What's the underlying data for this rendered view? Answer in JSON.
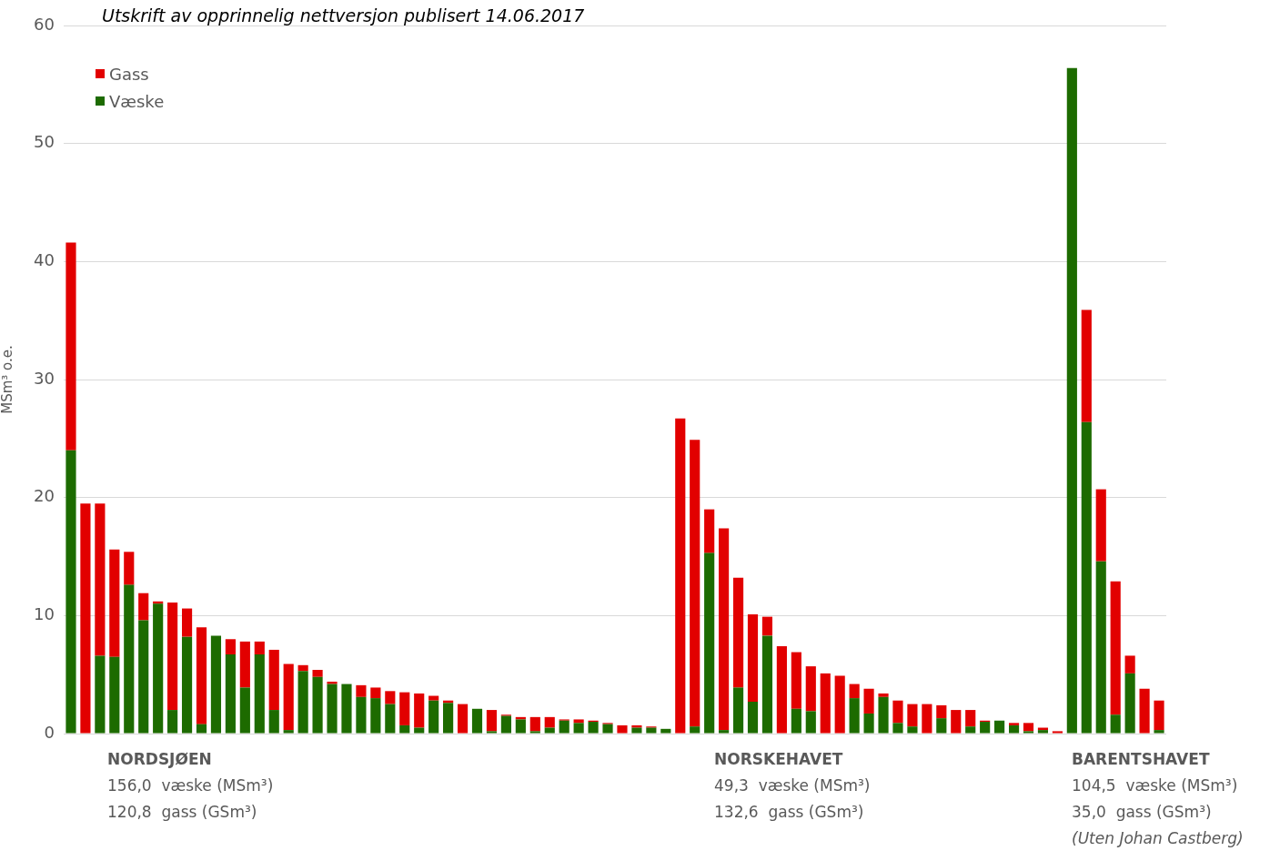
{
  "chart_data": {
    "type": "bar",
    "title": "Utskrift av opprinnelig nettversjon publisert 14.06.2017",
    "ylabel": "MSm³ o.e.",
    "categories": [
      null,
      null,
      null,
      null,
      null,
      null,
      null,
      null,
      null,
      null,
      null,
      null,
      null,
      null,
      null,
      null,
      null,
      null,
      null,
      null,
      null,
      null,
      null,
      null,
      null,
      null,
      null,
      null,
      null,
      null,
      null,
      null,
      null,
      null,
      null,
      null,
      null,
      null,
      null,
      null,
      null,
      null,
      null,
      null,
      null,
      null,
      null,
      null,
      null,
      null,
      null,
      null,
      null,
      null,
      null,
      null,
      null,
      null,
      null,
      null,
      null,
      null,
      null,
      null,
      null,
      null,
      null,
      null,
      null,
      null,
      null,
      null,
      null,
      null,
      null,
      null
    ],
    "stacked": true,
    "ylim": [
      0,
      60
    ],
    "yticks": [
      0,
      10,
      20,
      30,
      40,
      50,
      60
    ],
    "grid": "y",
    "legend": "top left",
    "series": [
      {
        "name": "Væske",
        "color": "#1d6b00",
        "values": [
          24,
          0,
          6.6,
          6.5,
          12.6,
          9.6,
          11,
          2,
          8.2,
          0.8,
          8.3,
          6.7,
          3.9,
          6.7,
          2,
          0.3,
          5.3,
          4.8,
          4.2,
          4.2,
          3.1,
          3,
          2.5,
          0.7,
          0.5,
          2.8,
          2.6,
          0,
          2.1,
          0.2,
          1.5,
          1.2,
          0.2,
          0.5,
          1.1,
          0.9,
          1,
          0.8,
          null,
          0.5,
          0.5,
          0.4,
          0,
          0.6,
          15.3,
          0.3,
          3.9,
          2.7,
          8.3,
          0,
          2.1,
          1.9,
          0,
          0,
          3,
          1.7,
          3.1,
          0.9,
          0.6,
          0,
          1.3,
          0,
          0.6,
          1,
          1.1,
          0.7,
          0.2,
          0.3,
          0,
          56.4,
          26.4,
          14.6,
          1.6,
          5.1,
          null,
          0.3
        ]
      },
      {
        "name": "Gass",
        "color": "#e20000",
        "values": [
          17.6,
          19.5,
          12.9,
          9.1,
          2.8,
          2.3,
          0.2,
          9.1,
          2.4,
          8.2,
          0,
          1.3,
          3.9,
          1.1,
          5.1,
          5.6,
          0.5,
          0.6,
          0.2,
          0,
          1,
          0.9,
          1.1,
          2.8,
          2.9,
          0.4,
          0.2,
          2.5,
          0,
          1.8,
          0.1,
          0.2,
          1.2,
          0.9,
          0.1,
          0.3,
          0.1,
          0.1,
          0.7,
          0.2,
          0.1,
          0,
          26.7,
          24.3,
          3.7,
          17.1,
          9.3,
          7.4,
          1.6,
          7.4,
          4.8,
          3.8,
          5.1,
          4.9,
          1.2,
          2.1,
          0.3,
          1.9,
          1.9,
          2.5,
          1.1,
          2,
          1.4,
          0.1,
          0,
          0.2,
          0.7,
          0.2,
          0.2,
          0,
          9.5,
          6.1,
          11.3,
          1.5,
          3.8,
          2.5
        ]
      }
    ],
    "annotations": [
      "NORDSJØEN",
      "156,0  væske (MSm³)",
      "120,8  gass (GSm³)",
      "NORSKEHAVET",
      "49,3  væske (MSm³)",
      "132,6  gass (GSm³)",
      "BARENTSHAVET",
      "104,5  væske (MSm³)",
      "35,0  gass (GSm³)",
      "(Uten Johan Castberg)"
    ]
  }
}
